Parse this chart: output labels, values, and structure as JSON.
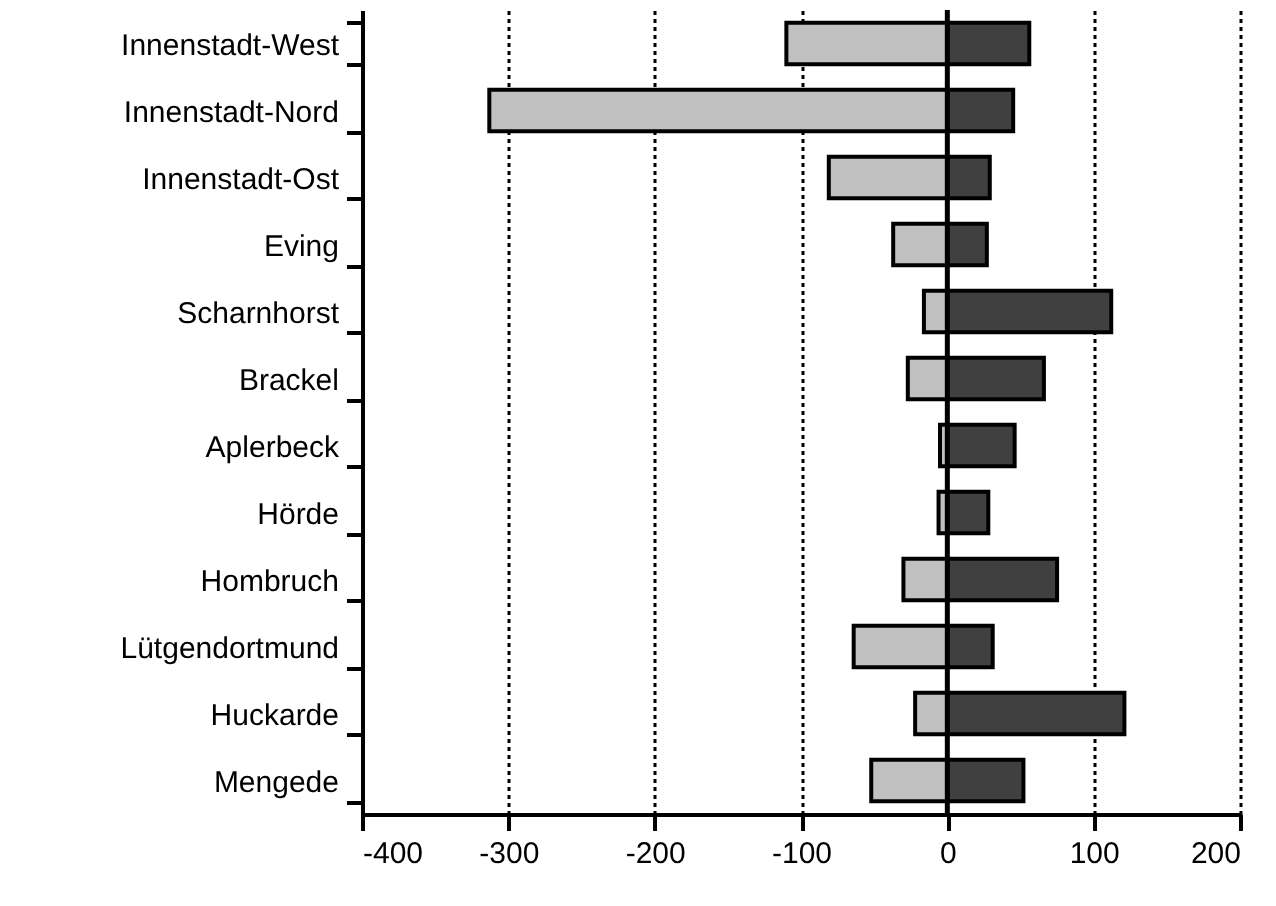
{
  "chart_data": {
    "type": "bar",
    "orientation": "horizontal",
    "stacked": true,
    "categories": [
      "Innenstadt-West",
      "Innenstadt-Nord",
      "Innenstadt-Ost",
      "Eving",
      "Scharnhorst",
      "Brackel",
      "Aplerbeck",
      "Hörde",
      "Hombruch",
      "Lütgendortmund",
      "Huckarde",
      "Mengede"
    ],
    "series": [
      {
        "color": "#c0c0c0",
        "values": [
          -110,
          -313,
          -81,
          -37,
          -16,
          -27,
          -5,
          -6,
          -30,
          -64,
          -22,
          -52
        ]
      },
      {
        "color": "#404040",
        "values": [
          56,
          45,
          29,
          27,
          112,
          66,
          46,
          28,
          75,
          31,
          121,
          52
        ]
      }
    ],
    "xlim": [
      -400,
      200
    ],
    "xticks": [
      -400,
      -300,
      -200,
      -100,
      0,
      100,
      200
    ],
    "grid": "x",
    "ref_lines": [
      {
        "axis": "x",
        "value": 0
      }
    ]
  }
}
